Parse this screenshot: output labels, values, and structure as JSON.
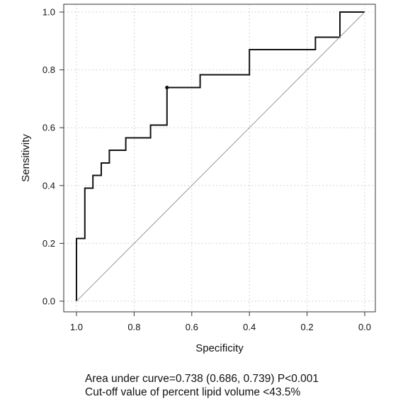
{
  "chart_data": {
    "type": "line",
    "xlabel": "Specificity",
    "ylabel": "Sensitivity",
    "x_axis_reversed": true,
    "xlim": [
      1.0,
      0.0
    ],
    "ylim": [
      0.0,
      1.0
    ],
    "x_ticks": [
      "1.0",
      "0.8",
      "0.6",
      "0.4",
      "0.2",
      "0.0"
    ],
    "y_ticks": [
      "0.0",
      "0.2",
      "0.4",
      "0.6",
      "0.8",
      "1.0"
    ],
    "grid": true,
    "series": [
      {
        "role": "roc-curve",
        "color": "#111111",
        "points": [
          [
            1.0,
            0.0
          ],
          [
            1.0,
            0.217
          ],
          [
            0.971,
            0.217
          ],
          [
            0.971,
            0.391
          ],
          [
            0.943,
            0.391
          ],
          [
            0.943,
            0.435
          ],
          [
            0.914,
            0.435
          ],
          [
            0.914,
            0.478
          ],
          [
            0.886,
            0.478
          ],
          [
            0.886,
            0.522
          ],
          [
            0.829,
            0.522
          ],
          [
            0.829,
            0.565
          ],
          [
            0.743,
            0.565
          ],
          [
            0.743,
            0.609
          ],
          [
            0.686,
            0.609
          ],
          [
            0.686,
            0.739
          ],
          [
            0.571,
            0.739
          ],
          [
            0.571,
            0.783
          ],
          [
            0.4,
            0.783
          ],
          [
            0.4,
            0.87
          ],
          [
            0.171,
            0.87
          ],
          [
            0.171,
            0.913
          ],
          [
            0.086,
            0.913
          ],
          [
            0.086,
            1.0
          ],
          [
            0.0,
            1.0
          ]
        ]
      },
      {
        "role": "reference-diagonal",
        "color": "#9a9a9a",
        "points": [
          [
            1.0,
            0.0
          ],
          [
            0.0,
            1.0
          ]
        ]
      }
    ],
    "cutoff_point": {
      "x": 0.686,
      "y": 0.739
    },
    "annotations": [
      "Area under curve=0.738 (0.686, 0.739) P<0.001",
      "Cut-off value of percent lipid volume <43.5%"
    ]
  },
  "caption": {
    "auc_line": "Area under curve=0.738 (0.686, 0.739) P<0.001",
    "cutoff_line": "Cut-off value of percent lipid volume <43.5%"
  }
}
